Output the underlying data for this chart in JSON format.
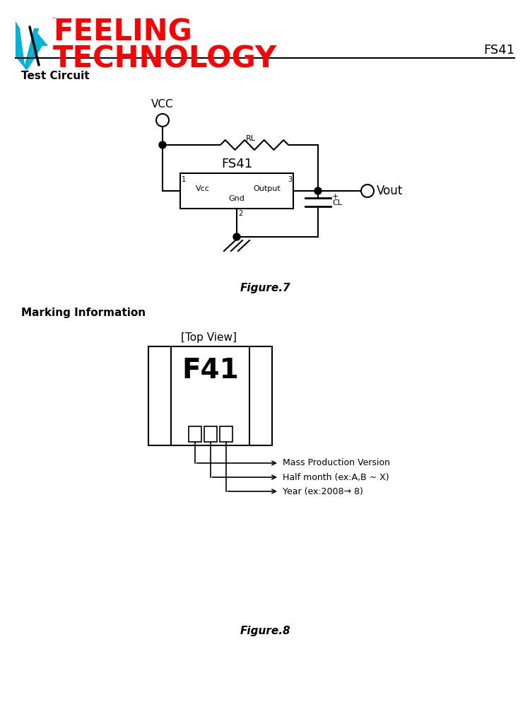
{
  "bg_color": "#ffffff",
  "logo_color": "#ff0000",
  "logo_cyan_color": "#00b4d8",
  "header_label": "FS41",
  "section1_label": "Test Circuit",
  "figure7_label": "Figure.7",
  "section2_label": "Marking Information",
  "figure8_label": "Figure.8",
  "labels_marking": [
    "Mass Production Version",
    "Half month (ex:A,B ~ X)",
    "Year (ex:2008→ 8)"
  ]
}
